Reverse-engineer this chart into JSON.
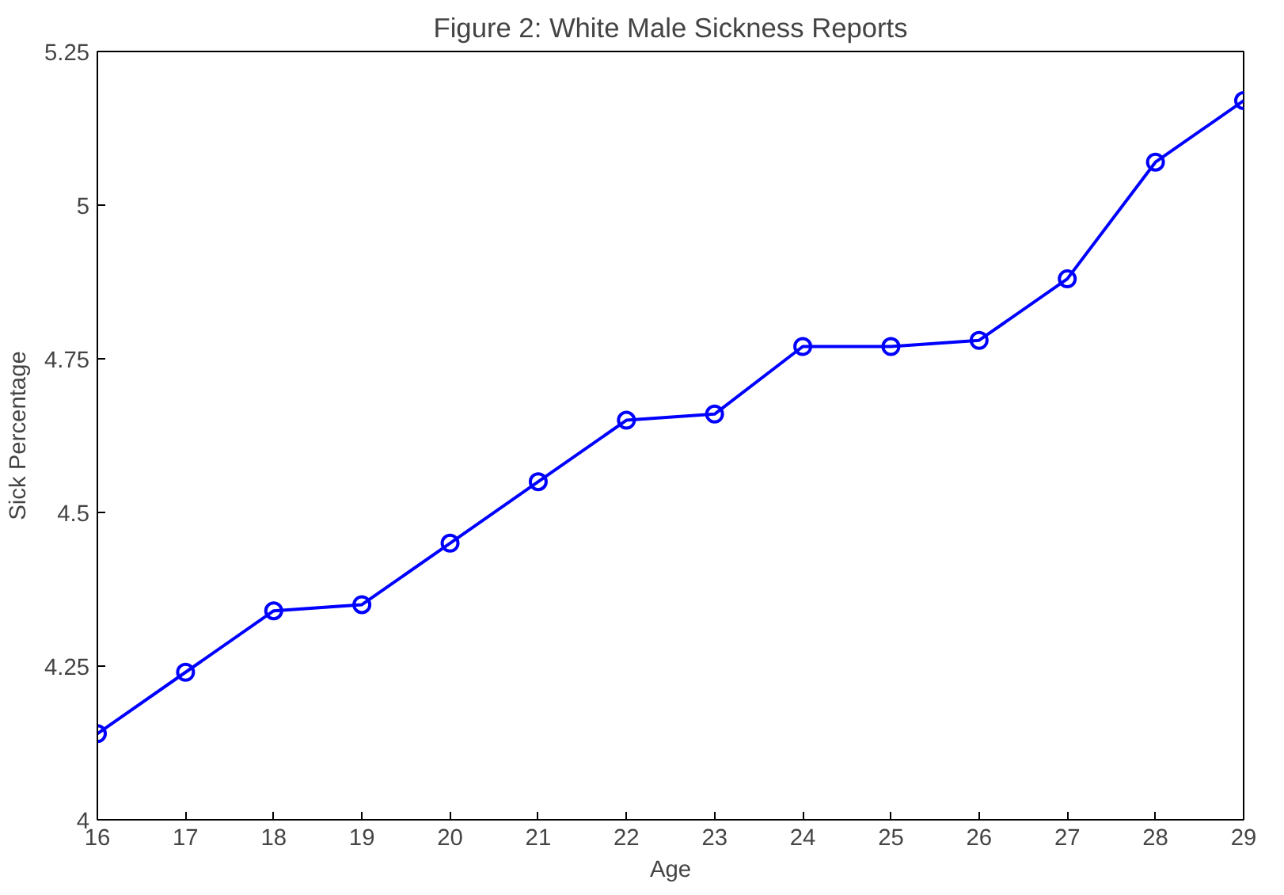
{
  "chart_data": {
    "type": "line",
    "title": "Figure 2: White Male Sickness Reports",
    "xlabel": "Age",
    "ylabel": "Sick Percentage",
    "x": [
      16,
      17,
      18,
      19,
      20,
      21,
      22,
      23,
      24,
      25,
      26,
      27,
      28,
      29
    ],
    "series": [
      {
        "color": "#0000ff",
        "values": [
          4.14,
          4.24,
          4.34,
          4.35,
          4.45,
          4.55,
          4.65,
          4.66,
          4.77,
          4.77,
          4.78,
          4.88,
          5.07,
          5.17
        ]
      }
    ],
    "xlim": [
      16,
      29
    ],
    "ylim": [
      4,
      5.25
    ],
    "xticks": [
      16,
      17,
      18,
      19,
      20,
      21,
      22,
      23,
      24,
      25,
      26,
      27,
      28,
      29
    ],
    "yticks": [
      4,
      {
        "value": 4.25,
        "label": "4.25"
      },
      {
        "value": 4.5,
        "label": "4.5"
      },
      {
        "value": 4.75,
        "label": "4.75"
      },
      5,
      {
        "value": 5.25,
        "label": "5.25"
      }
    ],
    "grid": false,
    "marker": "circle",
    "line_style": "solid"
  }
}
